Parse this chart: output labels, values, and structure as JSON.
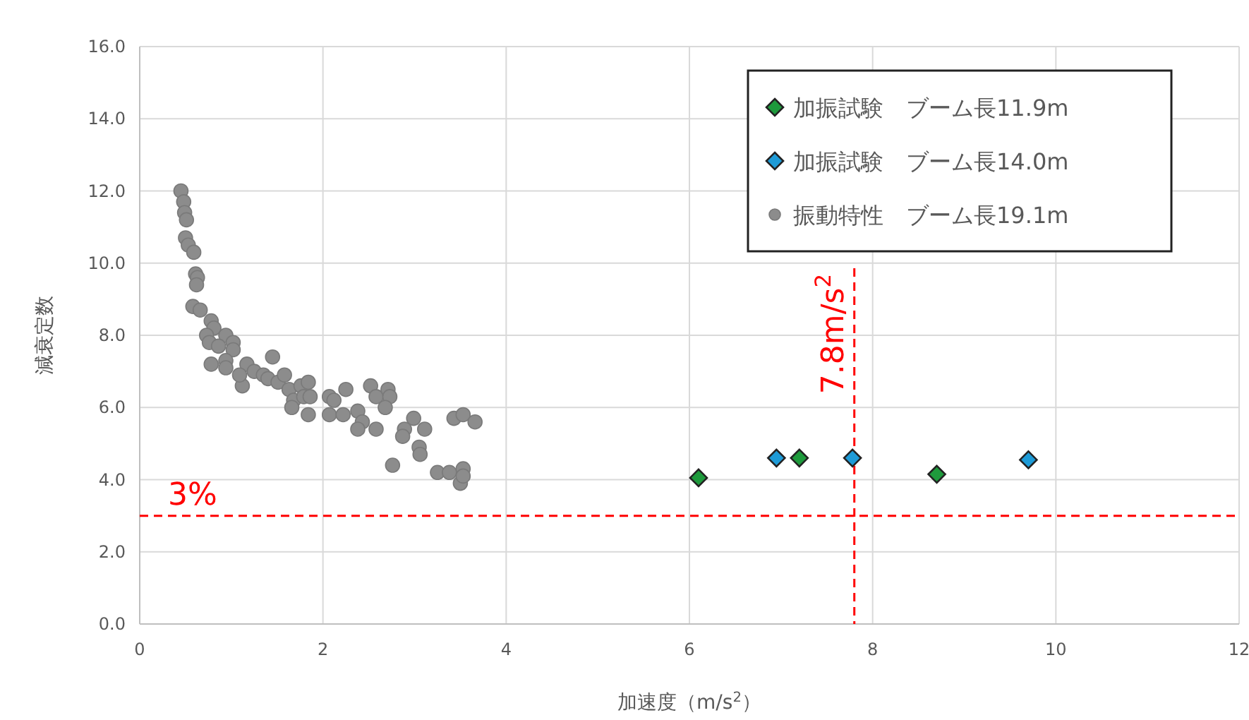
{
  "chart_data": {
    "type": "scatter",
    "xlabel": "加速度（m/s$^{2}$）",
    "ylabel": "減衰定数",
    "xlim": [
      0,
      12
    ],
    "ylim": [
      0,
      16
    ],
    "xticks": [
      0,
      2,
      4,
      6,
      8,
      10,
      12
    ],
    "yticks": [
      {
        "value": 0,
        "label": "0.0"
      },
      {
        "value": 2,
        "label": "2.0"
      },
      {
        "value": 4,
        "label": "4.0"
      },
      {
        "value": 6,
        "label": "6.0"
      },
      {
        "value": 8,
        "label": "8.0"
      },
      {
        "value": 10,
        "label": "10.0"
      },
      {
        "value": 12,
        "label": "12.0"
      },
      {
        "value": 14,
        "label": "14.0"
      },
      {
        "value": 16,
        "label": "16.0"
      }
    ],
    "grid": true,
    "legend": "top right",
    "series": [
      {
        "name": "加振試験　ブーム長11.9m",
        "color": "#1e9a3c",
        "marker": "diamond",
        "x": [
          6.1,
          7.2,
          8.7
        ],
        "values": [
          4.05,
          4.6,
          4.15
        ]
      },
      {
        "name": "加振試験　ブーム長14.0m",
        "color": "#1e9bd7",
        "marker": "diamond",
        "x": [
          6.95,
          7.78,
          9.7
        ],
        "values": [
          4.6,
          4.6,
          4.55
        ]
      },
      {
        "name": "振動特性　ブーム長19.1m",
        "color": "#8c8c8c",
        "marker": "circle",
        "x": [
          0.45,
          0.48,
          0.49,
          0.51,
          0.5,
          0.53,
          0.59,
          0.61,
          0.63,
          0.62,
          0.58,
          0.66,
          0.78,
          0.81,
          0.73,
          0.76,
          0.94,
          1.02,
          0.86,
          1.02,
          0.94,
          0.78,
          0.94,
          1.17,
          1.25,
          1.12,
          1.09,
          1.35,
          1.45,
          1.4,
          1.51,
          1.58,
          1.63,
          1.68,
          1.66,
          1.76,
          1.84,
          1.79,
          1.86,
          1.84,
          2.07,
          2.12,
          2.25,
          2.07,
          2.22,
          2.38,
          2.43,
          2.38,
          2.58,
          2.52,
          2.58,
          2.71,
          2.73,
          2.68,
          2.99,
          2.89,
          2.87,
          3.11,
          3.05,
          3.06,
          2.76,
          3.25,
          3.38,
          3.53,
          3.5,
          3.53,
          3.43,
          3.53,
          3.66
        ],
        "values": [
          12.0,
          11.7,
          11.4,
          11.2,
          10.7,
          10.5,
          10.3,
          9.7,
          9.6,
          9.4,
          8.8,
          8.7,
          8.4,
          8.2,
          8.0,
          7.8,
          8.0,
          7.8,
          7.7,
          7.6,
          7.3,
          7.2,
          7.1,
          7.2,
          7.0,
          6.6,
          6.9,
          6.9,
          7.4,
          6.8,
          6.7,
          6.9,
          6.5,
          6.2,
          6.0,
          6.6,
          6.7,
          6.3,
          6.3,
          5.8,
          6.3,
          6.2,
          6.5,
          5.8,
          5.8,
          5.9,
          5.6,
          5.4,
          5.4,
          6.6,
          6.3,
          6.5,
          6.3,
          6.0,
          5.7,
          5.4,
          5.2,
          5.4,
          4.9,
          4.7,
          4.4,
          4.2,
          4.2,
          4.3,
          3.9,
          4.1,
          5.7,
          5.8,
          5.6
        ]
      }
    ],
    "ref_lines": [
      {
        "axis": "y",
        "value": 3,
        "label": "3%",
        "color": "#ff0000",
        "line_style": "dashed"
      },
      {
        "axis": "x",
        "value": 7.8,
        "label": "7.8m/s$^{2}$",
        "color": "#ff0000",
        "line_style": "dashed"
      }
    ]
  }
}
